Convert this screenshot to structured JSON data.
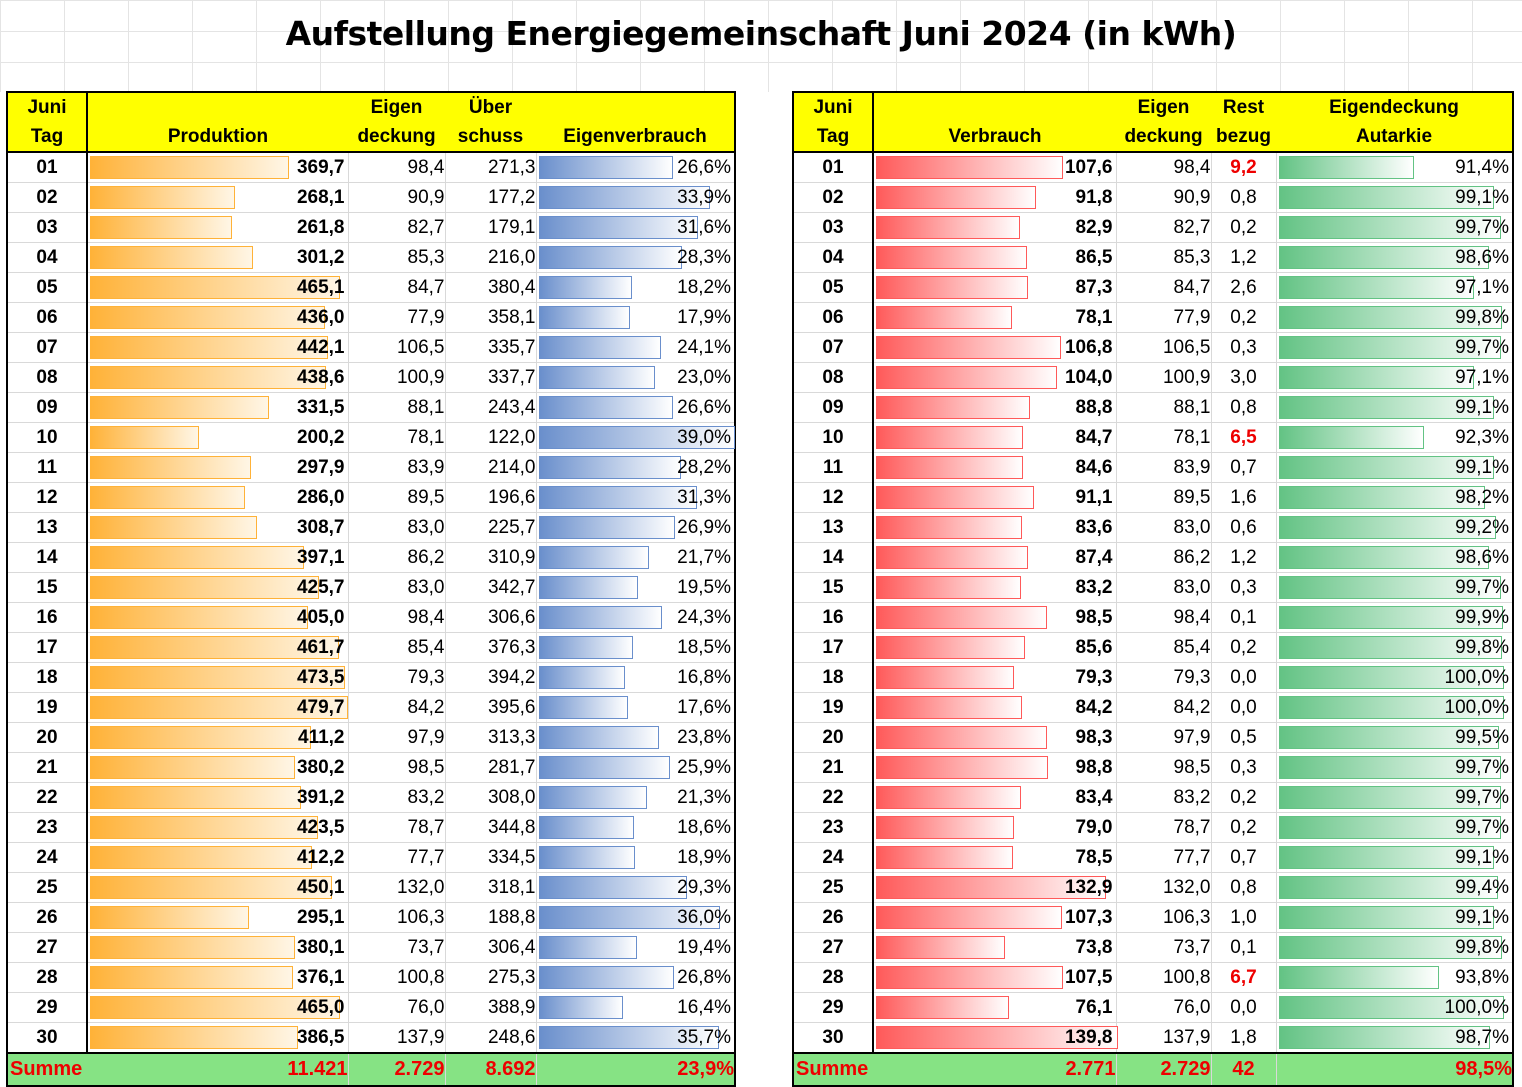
{
  "title": "Aufstellung Energiegemeinschaft Juni 2024 (in kWh)",
  "left": {
    "headers": {
      "day_line1": "Juni",
      "day_line2": "Tag",
      "produktion": "Produktion",
      "eigen_line1": "Eigen",
      "eigen_line2": "deckung",
      "ueber_line1": "Über",
      "ueber_line2": "schuss",
      "eigenverbrauch": "Eigenverbrauch"
    },
    "rows": [
      {
        "day": "01",
        "prod": "369,7",
        "prod_frac": 0.771,
        "eigen": "98,4",
        "ueber": "271,3",
        "ev": "26,6%",
        "ev_frac": 0.682
      },
      {
        "day": "02",
        "prod": "268,1",
        "prod_frac": 0.559,
        "eigen": "90,9",
        "ueber": "177,2",
        "ev": "33,9%",
        "ev_frac": 0.869
      },
      {
        "day": "03",
        "prod": "261,8",
        "prod_frac": 0.546,
        "eigen": "82,7",
        "ueber": "179,1",
        "ev": "31,6%",
        "ev_frac": 0.81
      },
      {
        "day": "04",
        "prod": "301,2",
        "prod_frac": 0.628,
        "eigen": "85,3",
        "ueber": "216,0",
        "ev": "28,3%",
        "ev_frac": 0.726
      },
      {
        "day": "05",
        "prod": "465,1",
        "prod_frac": 0.97,
        "eigen": "84,7",
        "ueber": "380,4",
        "ev": "18,2%",
        "ev_frac": 0.467
      },
      {
        "day": "06",
        "prod": "436,0",
        "prod_frac": 0.909,
        "eigen": "77,9",
        "ueber": "358,1",
        "ev": "17,9%",
        "ev_frac": 0.459
      },
      {
        "day": "07",
        "prod": "442,1",
        "prod_frac": 0.922,
        "eigen": "106,5",
        "ueber": "335,7",
        "ev": "24,1%",
        "ev_frac": 0.618
      },
      {
        "day": "08",
        "prod": "438,6",
        "prod_frac": 0.914,
        "eigen": "100,9",
        "ueber": "337,7",
        "ev": "23,0%",
        "ev_frac": 0.59
      },
      {
        "day": "09",
        "prod": "331,5",
        "prod_frac": 0.691,
        "eigen": "88,1",
        "ueber": "243,4",
        "ev": "26,6%",
        "ev_frac": 0.682
      },
      {
        "day": "10",
        "prod": "200,2",
        "prod_frac": 0.417,
        "eigen": "78,1",
        "ueber": "122,0",
        "ev": "39,0%",
        "ev_frac": 1.0
      },
      {
        "day": "11",
        "prod": "297,9",
        "prod_frac": 0.621,
        "eigen": "83,9",
        "ueber": "214,0",
        "ev": "28,2%",
        "ev_frac": 0.723
      },
      {
        "day": "12",
        "prod": "286,0",
        "prod_frac": 0.596,
        "eigen": "89,5",
        "ueber": "196,6",
        "ev": "31,3%",
        "ev_frac": 0.803
      },
      {
        "day": "13",
        "prod": "308,7",
        "prod_frac": 0.644,
        "eigen": "83,0",
        "ueber": "225,7",
        "ev": "26,9%",
        "ev_frac": 0.69
      },
      {
        "day": "14",
        "prod": "397,1",
        "prod_frac": 0.828,
        "eigen": "86,2",
        "ueber": "310,9",
        "ev": "21,7%",
        "ev_frac": 0.556
      },
      {
        "day": "15",
        "prod": "425,7",
        "prod_frac": 0.888,
        "eigen": "83,0",
        "ueber": "342,7",
        "ev": "19,5%",
        "ev_frac": 0.5
      },
      {
        "day": "16",
        "prod": "405,0",
        "prod_frac": 0.844,
        "eigen": "98,4",
        "ueber": "306,6",
        "ev": "24,3%",
        "ev_frac": 0.623
      },
      {
        "day": "17",
        "prod": "461,7",
        "prod_frac": 0.963,
        "eigen": "85,4",
        "ueber": "376,3",
        "ev": "18,5%",
        "ev_frac": 0.474
      },
      {
        "day": "18",
        "prod": "473,5",
        "prod_frac": 0.987,
        "eigen": "79,3",
        "ueber": "394,2",
        "ev": "16,8%",
        "ev_frac": 0.431
      },
      {
        "day": "19",
        "prod": "479,7",
        "prod_frac": 1.0,
        "eigen": "84,2",
        "ueber": "395,6",
        "ev": "17,6%",
        "ev_frac": 0.451
      },
      {
        "day": "20",
        "prod": "411,2",
        "prod_frac": 0.857,
        "eigen": "97,9",
        "ueber": "313,3",
        "ev": "23,8%",
        "ev_frac": 0.61
      },
      {
        "day": "21",
        "prod": "380,2",
        "prod_frac": 0.793,
        "eigen": "98,5",
        "ueber": "281,7",
        "ev": "25,9%",
        "ev_frac": 0.664
      },
      {
        "day": "22",
        "prod": "391,2",
        "prod_frac": 0.816,
        "eigen": "83,2",
        "ueber": "308,0",
        "ev": "21,3%",
        "ev_frac": 0.546
      },
      {
        "day": "23",
        "prod": "423,5",
        "prod_frac": 0.883,
        "eigen": "78,7",
        "ueber": "344,8",
        "ev": "18,6%",
        "ev_frac": 0.477
      },
      {
        "day": "24",
        "prod": "412,2",
        "prod_frac": 0.859,
        "eigen": "77,7",
        "ueber": "334,5",
        "ev": "18,9%",
        "ev_frac": 0.485
      },
      {
        "day": "25",
        "prod": "450,1",
        "prod_frac": 0.938,
        "eigen": "132,0",
        "ueber": "318,1",
        "ev": "29,3%",
        "ev_frac": 0.751
      },
      {
        "day": "26",
        "prod": "295,1",
        "prod_frac": 0.615,
        "eigen": "106,3",
        "ueber": "188,8",
        "ev": "36,0%",
        "ev_frac": 0.923
      },
      {
        "day": "27",
        "prod": "380,1",
        "prod_frac": 0.792,
        "eigen": "73,7",
        "ueber": "306,4",
        "ev": "19,4%",
        "ev_frac": 0.497
      },
      {
        "day": "28",
        "prod": "376,1",
        "prod_frac": 0.784,
        "eigen": "100,8",
        "ueber": "275,3",
        "ev": "26,8%",
        "ev_frac": 0.687
      },
      {
        "day": "29",
        "prod": "465,0",
        "prod_frac": 0.969,
        "eigen": "76,0",
        "ueber": "388,9",
        "ev": "16,4%",
        "ev_frac": 0.421
      },
      {
        "day": "30",
        "prod": "386,5",
        "prod_frac": 0.806,
        "eigen": "137,9",
        "ueber": "248,6",
        "ev": "35,7%",
        "ev_frac": 0.915
      }
    ],
    "sum": {
      "label": "Summe",
      "prod": "11.421",
      "eigen": "2.729",
      "ueber": "8.692",
      "ev": "23,9%"
    }
  },
  "right": {
    "headers": {
      "day_line1": "Juni",
      "day_line2": "Tag",
      "verbrauch": "Verbrauch",
      "eigen_line1": "Eigen",
      "eigen_line2": "deckung",
      "rest_line1": "Rest",
      "rest_line2": "bezug",
      "aut_line1": "Eigendeckung",
      "aut_line2": "Autarkie"
    },
    "rows": [
      {
        "day": "01",
        "verb": "107,6",
        "verb_frac": 0.77,
        "eigen": "98,4",
        "rest": "9,2",
        "rest_red": true,
        "aut": "91,4%",
        "aut_frac": 0.585
      },
      {
        "day": "02",
        "verb": "91,8",
        "verb_frac": 0.657,
        "eigen": "90,9",
        "rest": "0,8",
        "rest_red": false,
        "aut": "99,1%",
        "aut_frac": 0.936
      },
      {
        "day": "03",
        "verb": "82,9",
        "verb_frac": 0.593,
        "eigen": "82,7",
        "rest": "0,2",
        "rest_red": false,
        "aut": "99,7%",
        "aut_frac": 0.963
      },
      {
        "day": "04",
        "verb": "86,5",
        "verb_frac": 0.619,
        "eigen": "85,3",
        "rest": "1,2",
        "rest_red": false,
        "aut": "98,6%",
        "aut_frac": 0.914
      },
      {
        "day": "05",
        "verb": "87,3",
        "verb_frac": 0.624,
        "eigen": "84,7",
        "rest": "2,6",
        "rest_red": false,
        "aut": "97,1%",
        "aut_frac": 0.848
      },
      {
        "day": "06",
        "verb": "78,1",
        "verb_frac": 0.559,
        "eigen": "77,9",
        "rest": "0,2",
        "rest_red": false,
        "aut": "99,8%",
        "aut_frac": 0.968
      },
      {
        "day": "07",
        "verb": "106,8",
        "verb_frac": 0.764,
        "eigen": "106,5",
        "rest": "0,3",
        "rest_red": false,
        "aut": "99,7%",
        "aut_frac": 0.963
      },
      {
        "day": "08",
        "verb": "104,0",
        "verb_frac": 0.744,
        "eigen": "100,9",
        "rest": "3,0",
        "rest_red": false,
        "aut": "97,1%",
        "aut_frac": 0.848
      },
      {
        "day": "09",
        "verb": "88,8",
        "verb_frac": 0.635,
        "eigen": "88,1",
        "rest": "0,8",
        "rest_red": false,
        "aut": "99,1%",
        "aut_frac": 0.936
      },
      {
        "day": "10",
        "verb": "84,7",
        "verb_frac": 0.606,
        "eigen": "78,1",
        "rest": "6,5",
        "rest_red": true,
        "aut": "92,3%",
        "aut_frac": 0.625
      },
      {
        "day": "11",
        "verb": "84,6",
        "verb_frac": 0.605,
        "eigen": "83,9",
        "rest": "0,7",
        "rest_red": false,
        "aut": "99,1%",
        "aut_frac": 0.936
      },
      {
        "day": "12",
        "verb": "91,1",
        "verb_frac": 0.652,
        "eigen": "89,5",
        "rest": "1,6",
        "rest_red": false,
        "aut": "98,2%",
        "aut_frac": 0.896
      },
      {
        "day": "13",
        "verb": "83,6",
        "verb_frac": 0.598,
        "eigen": "83,0",
        "rest": "0,6",
        "rest_red": false,
        "aut": "99,2%",
        "aut_frac": 0.941
      },
      {
        "day": "14",
        "verb": "87,4",
        "verb_frac": 0.625,
        "eigen": "86,2",
        "rest": "1,2",
        "rest_red": false,
        "aut": "98,6%",
        "aut_frac": 0.914
      },
      {
        "day": "15",
        "verb": "83,2",
        "verb_frac": 0.595,
        "eigen": "83,0",
        "rest": "0,3",
        "rest_red": false,
        "aut": "99,7%",
        "aut_frac": 0.963
      },
      {
        "day": "16",
        "verb": "98,5",
        "verb_frac": 0.705,
        "eigen": "98,4",
        "rest": "0,1",
        "rest_red": false,
        "aut": "99,9%",
        "aut_frac": 0.973
      },
      {
        "day": "17",
        "verb": "85,6",
        "verb_frac": 0.612,
        "eigen": "85,4",
        "rest": "0,2",
        "rest_red": false,
        "aut": "99,8%",
        "aut_frac": 0.968
      },
      {
        "day": "18",
        "verb": "79,3",
        "verb_frac": 0.567,
        "eigen": "79,3",
        "rest": "0,0",
        "rest_red": false,
        "aut": "100,0%",
        "aut_frac": 0.977
      },
      {
        "day": "19",
        "verb": "84,2",
        "verb_frac": 0.602,
        "eigen": "84,2",
        "rest": "0,0",
        "rest_red": false,
        "aut": "100,0%",
        "aut_frac": 0.977
      },
      {
        "day": "20",
        "verb": "98,3",
        "verb_frac": 0.703,
        "eigen": "97,9",
        "rest": "0,5",
        "rest_red": false,
        "aut": "99,5%",
        "aut_frac": 0.955
      },
      {
        "day": "21",
        "verb": "98,8",
        "verb_frac": 0.707,
        "eigen": "98,5",
        "rest": "0,3",
        "rest_red": false,
        "aut": "99,7%",
        "aut_frac": 0.963
      },
      {
        "day": "22",
        "verb": "83,4",
        "verb_frac": 0.597,
        "eigen": "83,2",
        "rest": "0,2",
        "rest_red": false,
        "aut": "99,7%",
        "aut_frac": 0.963
      },
      {
        "day": "23",
        "verb": "79,0",
        "verb_frac": 0.565,
        "eigen": "78,7",
        "rest": "0,2",
        "rest_red": false,
        "aut": "99,7%",
        "aut_frac": 0.963
      },
      {
        "day": "24",
        "verb": "78,5",
        "verb_frac": 0.562,
        "eigen": "77,7",
        "rest": "0,7",
        "rest_red": false,
        "aut": "99,1%",
        "aut_frac": 0.936
      },
      {
        "day": "25",
        "verb": "132,9",
        "verb_frac": 0.951,
        "eigen": "132,0",
        "rest": "0,8",
        "rest_red": false,
        "aut": "99,4%",
        "aut_frac": 0.95
      },
      {
        "day": "26",
        "verb": "107,3",
        "verb_frac": 0.768,
        "eigen": "106,3",
        "rest": "1,0",
        "rest_red": false,
        "aut": "99,1%",
        "aut_frac": 0.936
      },
      {
        "day": "27",
        "verb": "73,8",
        "verb_frac": 0.528,
        "eigen": "73,7",
        "rest": "0,1",
        "rest_red": false,
        "aut": "99,8%",
        "aut_frac": 0.968
      },
      {
        "day": "28",
        "verb": "107,5",
        "verb_frac": 0.769,
        "eigen": "100,8",
        "rest": "6,7",
        "rest_red": true,
        "aut": "93,8%",
        "aut_frac": 0.693
      },
      {
        "day": "29",
        "verb": "76,1",
        "verb_frac": 0.544,
        "eigen": "76,0",
        "rest": "0,0",
        "rest_red": false,
        "aut": "100,0%",
        "aut_frac": 0.977
      },
      {
        "day": "30",
        "verb": "139,8",
        "verb_frac": 1.0,
        "eigen": "137,9",
        "rest": "1,8",
        "rest_red": false,
        "aut": "98,7%",
        "aut_frac": 0.918
      }
    ],
    "sum": {
      "label": "Summe",
      "verb": "2.771",
      "eigen": "2.729",
      "rest": "42",
      "aut": "98,5%"
    }
  }
}
